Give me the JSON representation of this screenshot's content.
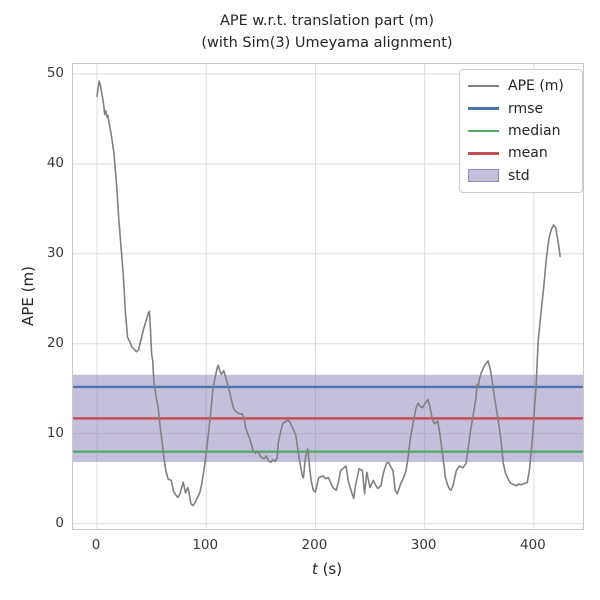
{
  "title": {
    "line1": "APE w.r.t. translation part (m)",
    "line2": "(with Sim(3) Umeyama alignment)"
  },
  "axes": {
    "ylabel": "APE (m)",
    "xlabel_var": "t",
    "xlabel_rest": " (s)",
    "x_ticks": [
      0,
      100,
      200,
      300,
      400
    ],
    "y_ticks": [
      0,
      10,
      20,
      30,
      40,
      50
    ]
  },
  "legend": {
    "items": [
      {
        "label": "APE (m)",
        "type": "line",
        "color": "#808080",
        "thickness": 1.6
      },
      {
        "label": "rmse",
        "type": "line",
        "color": "#4C72B0",
        "thickness": 2.6
      },
      {
        "label": "median",
        "type": "line",
        "color": "#55A868",
        "thickness": 2.6
      },
      {
        "label": "mean",
        "type": "line",
        "color": "#C44E52",
        "thickness": 2.6
      },
      {
        "label": "std",
        "type": "patch",
        "color": "#8172B2",
        "opacity": 0.45
      }
    ]
  },
  "chart_data": {
    "type": "line",
    "title": "APE w.r.t. translation part (m) (with Sim(3) Umeyama alignment)",
    "xlabel": "t (s)",
    "ylabel": "APE (m)",
    "xlim": [
      -22,
      445
    ],
    "ylim": [
      -0.6,
      51.1
    ],
    "grid": true,
    "legend_position": "upper right",
    "colors": {
      "ape": "#808080",
      "rmse": "#4C72B0",
      "median": "#55A868",
      "mean": "#C44E52",
      "std_fill": "#8172B2",
      "std_opacity": 0.45,
      "grid": "#dddddd",
      "spine": "#c9c9c9"
    },
    "stats": {
      "rmse": 15.2,
      "mean": 11.7,
      "median": 8.0,
      "std": 4.85,
      "std_band": [
        6.85,
        16.55
      ]
    },
    "series": [
      {
        "name": "APE (m)",
        "x": [
          0,
          2,
          3,
          5,
          6,
          7,
          8,
          9,
          10,
          11,
          13,
          15.5,
          18,
          20,
          22,
          24,
          26,
          28,
          30,
          32,
          34,
          36,
          38,
          40,
          43,
          45,
          47,
          48,
          49,
          50,
          51,
          52,
          54,
          56,
          58,
          60,
          61,
          63,
          65,
          66,
          68,
          70,
          72,
          74,
          76,
          78,
          79,
          81,
          83,
          84,
          86,
          88,
          90,
          92,
          94,
          96,
          98,
          100,
          102,
          104,
          106,
          108,
          110,
          111,
          113,
          114,
          116,
          118,
          121,
          123,
          125,
          127,
          129,
          131,
          133,
          135,
          136,
          138,
          140,
          143,
          145,
          147,
          148,
          150,
          153,
          155,
          157,
          159,
          161,
          163,
          165,
          166,
          168,
          170,
          172,
          175,
          177,
          180,
          182,
          185,
          188,
          189,
          191,
          193,
          195,
          196,
          198,
          200,
          203,
          205,
          207,
          209,
          212,
          214,
          216,
          219,
          221,
          223,
          226,
          228,
          230,
          232,
          235,
          237,
          240,
          243,
          245,
          247,
          250,
          253,
          255,
          257,
          260,
          262,
          265,
          267,
          269,
          271,
          273,
          275,
          278,
          281,
          283,
          285,
          287,
          290,
          292,
          294,
          296,
          298,
          300,
          303,
          305,
          307,
          309,
          312,
          314,
          316,
          318,
          319,
          321,
          323,
          324,
          326,
          329,
          332,
          335,
          338,
          340,
          342,
          345,
          347,
          348,
          349,
          350,
          352,
          355,
          358,
          360,
          362,
          364,
          367,
          370,
          372,
          374,
          376,
          378,
          380,
          382,
          384,
          386,
          388,
          390,
          392,
          394,
          396,
          399,
          401,
          402,
          404,
          406,
          408,
          410,
          411,
          413,
          414,
          416,
          418,
          420,
          422,
          423,
          424
        ],
        "y": [
          47.5,
          49.2,
          48.8,
          47.4,
          46.6,
          45.5,
          45.9,
          45.2,
          45.4,
          44.6,
          43.3,
          41.1,
          37.5,
          33.7,
          30.7,
          27.8,
          23.5,
          20.7,
          20.2,
          19.6,
          19.4,
          19.1,
          19.3,
          20.3,
          21.8,
          22.6,
          23.4,
          23.6,
          21.5,
          18.9,
          18.1,
          15.9,
          14.2,
          12.9,
          10.5,
          8.6,
          7.6,
          5.9,
          5.0,
          4.9,
          4.8,
          3.6,
          3.2,
          2.9,
          3.3,
          4.2,
          4.6,
          3.4,
          4.0,
          3.6,
          2.2,
          2.0,
          2.4,
          2.9,
          3.4,
          4.5,
          6.0,
          7.8,
          10.0,
          12.2,
          14.8,
          16.2,
          17.3,
          17.6,
          16.8,
          16.6,
          17.0,
          16.2,
          14.8,
          13.8,
          12.8,
          12.5,
          12.3,
          12.2,
          12.2,
          11.5,
          10.7,
          10.0,
          9.4,
          8.1,
          7.8,
          8.0,
          7.9,
          7.4,
          7.2,
          7.5,
          7.0,
          6.8,
          7.1,
          6.9,
          7.3,
          9.0,
          10.2,
          11.1,
          11.3,
          11.5,
          11.2,
          10.4,
          9.8,
          7.3,
          5.3,
          5.1,
          7.5,
          8.3,
          5.9,
          4.8,
          3.7,
          3.5,
          5.1,
          5.2,
          5.3,
          5.0,
          5.1,
          4.5,
          4.0,
          3.7,
          4.6,
          5.9,
          6.2,
          6.4,
          4.8,
          3.9,
          2.8,
          4.4,
          6.1,
          5.9,
          3.3,
          5.7,
          4.0,
          4.8,
          4.3,
          3.9,
          4.2,
          5.5,
          6.7,
          6.8,
          6.3,
          5.9,
          3.7,
          3.3,
          4.4,
          5.2,
          5.9,
          7.5,
          9.6,
          11.5,
          12.8,
          13.4,
          13.0,
          12.9,
          13.3,
          13.8,
          12.9,
          11.6,
          11.1,
          11.4,
          10.0,
          8.1,
          6.2,
          5.1,
          4.3,
          3.8,
          3.7,
          4.2,
          5.9,
          6.4,
          6.2,
          6.7,
          8.5,
          10.3,
          12.5,
          14.0,
          15.5,
          15.2,
          16.0,
          16.8,
          17.6,
          18.1,
          17.2,
          15.7,
          14.0,
          11.8,
          9.2,
          6.7,
          5.6,
          5.1,
          4.6,
          4.4,
          4.3,
          4.2,
          4.4,
          4.3,
          4.4,
          4.5,
          4.6,
          6.0,
          10.0,
          13.5,
          15.1,
          20.3,
          22.8,
          25.1,
          27.5,
          29.0,
          31.0,
          31.8,
          32.7,
          33.2,
          32.9,
          31.5,
          30.7,
          29.7
        ]
      }
    ]
  }
}
